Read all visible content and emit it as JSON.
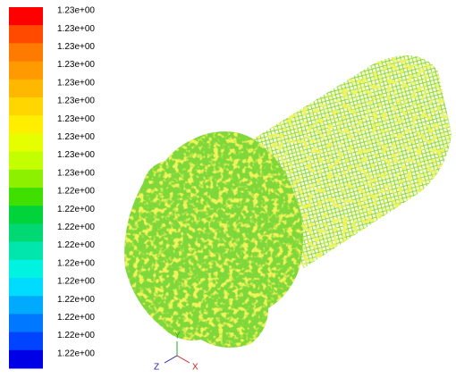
{
  "legend": {
    "labels": [
      "1.23e+00",
      "1.23e+00",
      "1.23e+00",
      "1.23e+00",
      "1.23e+00",
      "1.23e+00",
      "1.23e+00",
      "1.23e+00",
      "1.23e+00",
      "1.23e+00",
      "1.22e+00",
      "1.22e+00",
      "1.22e+00",
      "1.22e+00",
      "1.22e+00",
      "1.22e+00",
      "1.22e+00",
      "1.22e+00",
      "1.22e+00",
      "1.22e+00"
    ],
    "colors": [
      "#ff0000",
      "#ff4a00",
      "#ff7a00",
      "#ff9a00",
      "#ffb800",
      "#ffd600",
      "#ffee00",
      "#e6ff00",
      "#c4ff00",
      "#8cf000",
      "#3fe000",
      "#00d43a",
      "#00d873",
      "#00e6ad",
      "#00f2e0",
      "#00dcff",
      "#00aaff",
      "#0078ff",
      "#0044ff",
      "#0000e6"
    ]
  },
  "axes": {
    "y": "Y",
    "z": "Z",
    "x": "X"
  }
}
